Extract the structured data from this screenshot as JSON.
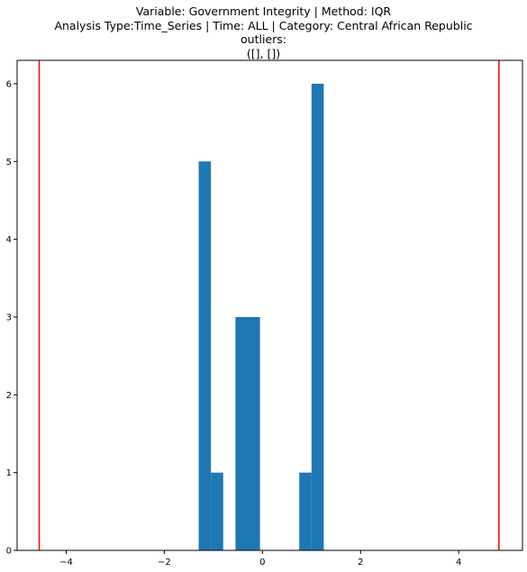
{
  "chart_data": {
    "type": "bar",
    "title_lines": [
      "Variable: Government Integrity | Method: IQR",
      "Analysis Type:Time_Series | Time: ALL | Category: Central African Republic",
      "outliers:",
      "([], [])"
    ],
    "xlim": [
      -5.0,
      5.3
    ],
    "ylim": [
      0,
      6.3
    ],
    "xticks": [
      -4,
      -2,
      0,
      2,
      4
    ],
    "yticks": [
      0,
      1,
      2,
      3,
      4,
      5,
      6
    ],
    "bins": [
      {
        "x0": -1.3,
        "x1": -1.05,
        "count": 5
      },
      {
        "x0": -1.05,
        "x1": -0.8,
        "count": 1
      },
      {
        "x0": -0.55,
        "x1": -0.05,
        "count": 3
      },
      {
        "x0": 0.75,
        "x1": 1.0,
        "count": 1
      },
      {
        "x0": 1.0,
        "x1": 1.25,
        "count": 6
      }
    ],
    "bar_color": "#1f77b4",
    "threshold_lines": [
      -4.55,
      4.82
    ],
    "threshold_color": "#ff0000"
  }
}
